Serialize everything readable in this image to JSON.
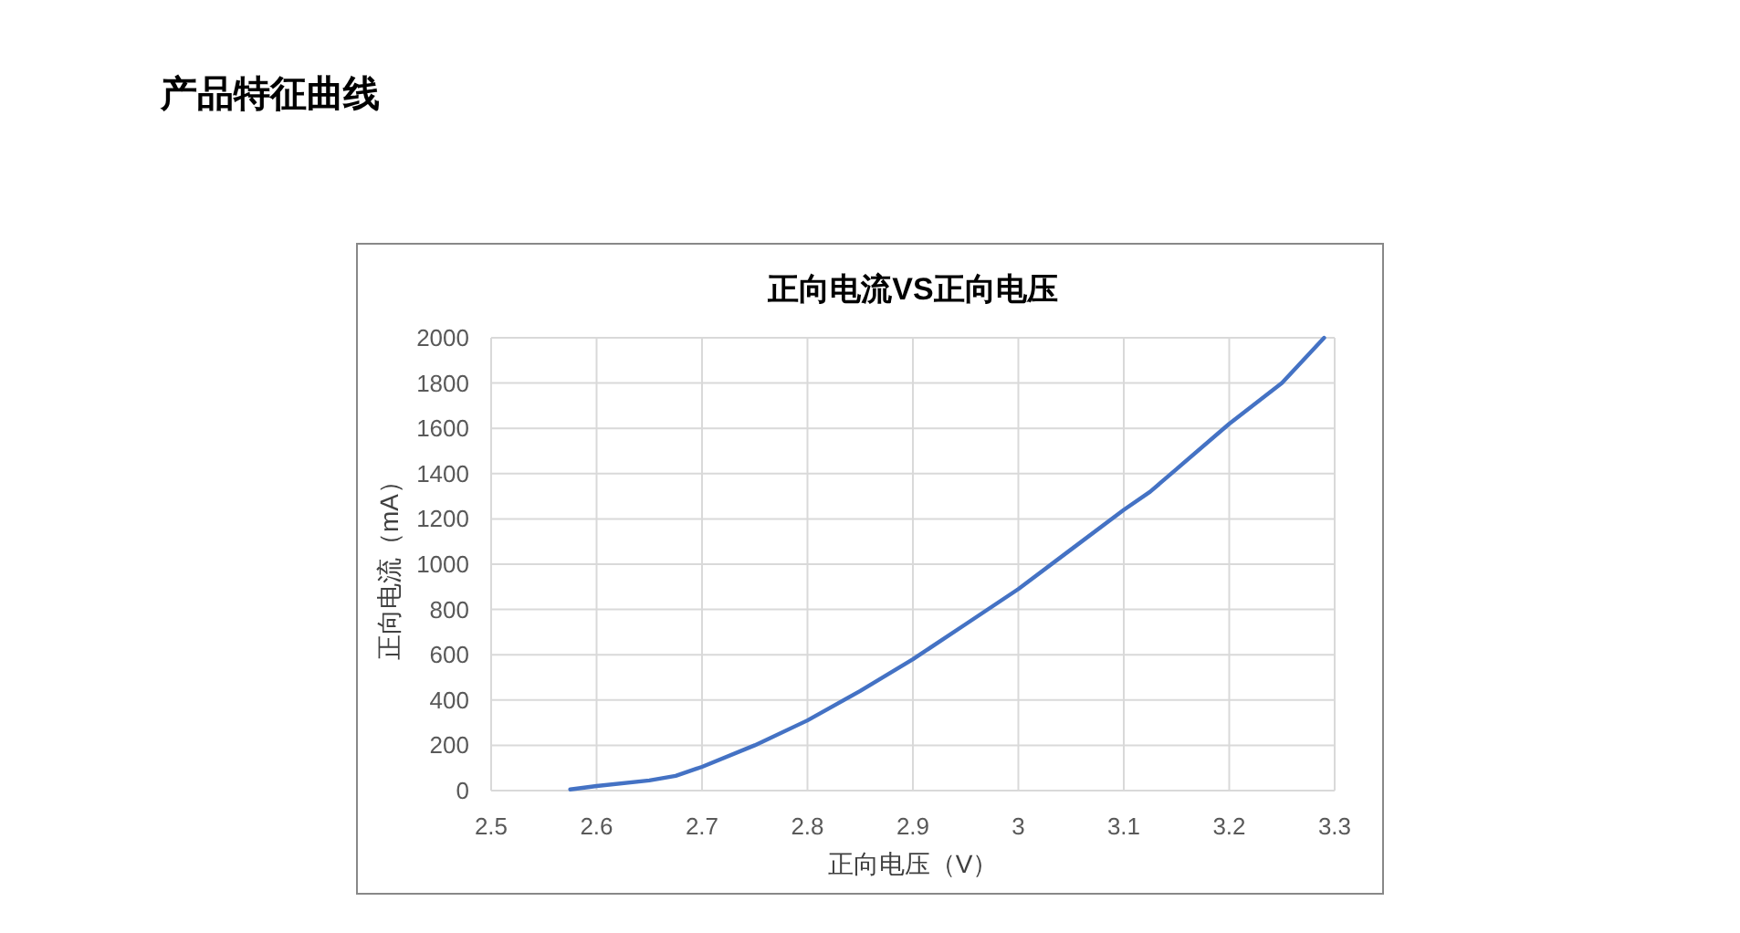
{
  "chart_data": {
    "type": "line",
    "title": "正向电流VS正向电压",
    "xlabel": "正向电压（V）",
    "ylabel": "正向电流（mA）",
    "annotations": [
      "产品特征曲线"
    ],
    "series": [
      {
        "color": "#4472c4",
        "x": [
          2.575,
          2.6,
          2.65,
          2.675,
          2.7,
          2.75,
          2.8,
          2.85,
          2.9,
          2.95,
          3.0,
          3.05,
          3.1,
          3.125,
          3.15,
          3.2,
          3.25,
          3.29
        ],
        "values": [
          5,
          20,
          45,
          65,
          105,
          200,
          310,
          440,
          580,
          735,
          890,
          1065,
          1240,
          1320,
          1420,
          1620,
          1800,
          2000
        ]
      }
    ],
    "xlim": [
      2.5,
      3.3
    ],
    "xticks": [
      2.5,
      2.6,
      2.7,
      2.8,
      2.9,
      3,
      3.1,
      3.2,
      3.3
    ],
    "ylim": [
      0,
      2000
    ],
    "yticks": [
      0,
      200,
      400,
      600,
      800,
      1000,
      1200,
      1400,
      1600,
      1800,
      2000
    ],
    "grid": true,
    "marker": "none",
    "line_style": "solid"
  }
}
